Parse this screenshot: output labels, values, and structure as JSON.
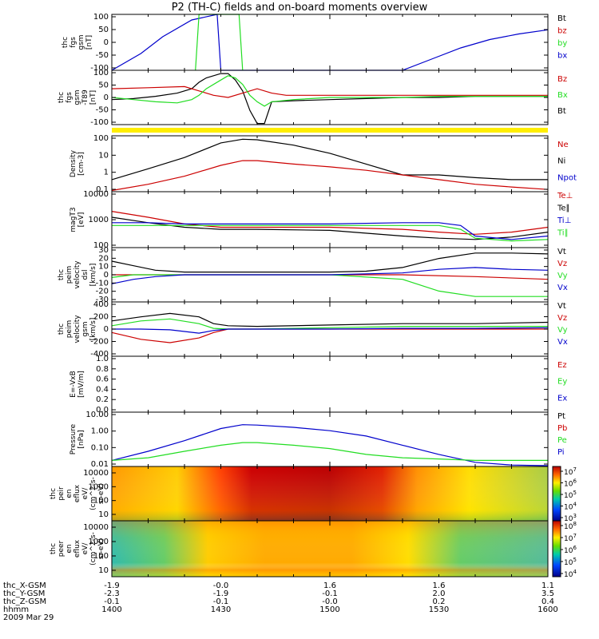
{
  "title": "P2 (TH-C) fields and on-board moments overview",
  "colors": {
    "black": "#000000",
    "red": "#cc0000",
    "green": "#22dd22",
    "blue": "#0000cc",
    "yellow": "#ffee00"
  },
  "chart_data": [
    {
      "type": "line",
      "panel": "fgs",
      "ylabel": [
        "thc",
        "fgs",
        "gsm",
        "[nT]"
      ],
      "yticks": [
        "100",
        "50",
        "0",
        "-50",
        "-100"
      ],
      "ylim": [
        -100,
        100
      ],
      "legend": [
        {
          "label": "Bt",
          "color": "black"
        },
        {
          "label": "bz",
          "color": "red"
        },
        {
          "label": "by",
          "color": "green"
        },
        {
          "label": "bx",
          "color": "blue"
        }
      ],
      "series": [
        {
          "name": "bx",
          "color": "blue",
          "x": [
            0,
            4,
            7,
            11,
            14.5,
            15,
            40,
            44,
            48,
            52,
            56,
            60
          ],
          "y": [
            -100,
            -40,
            20,
            80,
            100,
            -100,
            -100,
            -60,
            -20,
            10,
            30,
            45
          ]
        },
        {
          "name": "by",
          "color": "green",
          "x": [
            11.5,
            12,
            14,
            17.5,
            18
          ],
          "y": [
            -100,
            100,
            100,
            100,
            -100
          ]
        }
      ]
    },
    {
      "type": "line",
      "panel": "fgs_zoom",
      "ylabel": [
        "thc",
        "fgs",
        "gsm",
        "-T89",
        "[nT]"
      ],
      "yticks": [
        "100",
        "50",
        "0",
        "-50",
        "-100"
      ],
      "ylim": [
        -125,
        125
      ],
      "legend": [
        {
          "label": "Bz",
          "color": "red"
        },
        {
          "label": "Bx",
          "color": "green"
        },
        {
          "label": "Bt",
          "color": "black"
        }
      ],
      "series": [
        {
          "name": "Bt",
          "color": "black",
          "x": [
            0,
            3,
            6,
            9,
            11,
            12,
            13,
            15,
            16,
            17,
            18,
            19,
            20,
            21,
            22,
            25,
            30,
            35,
            40,
            45,
            50,
            55,
            60
          ],
          "y": [
            -10,
            -5,
            5,
            20,
            40,
            70,
            90,
            110,
            110,
            80,
            30,
            -60,
            -120,
            -120,
            -20,
            -15,
            -10,
            -5,
            0,
            0,
            5,
            5,
            5
          ]
        },
        {
          "name": "Bz",
          "color": "red",
          "x": [
            0,
            5,
            10,
            12,
            14,
            16,
            18,
            20,
            22,
            24,
            30,
            40,
            50,
            60
          ],
          "y": [
            40,
            45,
            50,
            30,
            10,
            0,
            20,
            40,
            20,
            10,
            10,
            10,
            10,
            10
          ]
        },
        {
          "name": "Bx",
          "color": "green",
          "x": [
            0,
            3,
            6,
            9,
            11,
            12,
            13,
            15,
            16,
            17,
            18,
            19,
            20,
            21,
            22,
            25,
            30,
            35,
            40,
            45,
            50,
            55,
            60
          ],
          "y": [
            0,
            -10,
            -20,
            -25,
            -10,
            10,
            40,
            80,
            100,
            90,
            60,
            10,
            -20,
            -40,
            -20,
            -10,
            0,
            0,
            0,
            5,
            5,
            5,
            5
          ]
        }
      ]
    },
    {
      "type": "line",
      "panel": "density",
      "ylabel": [
        "Density",
        "[cm-3]"
      ],
      "scale": "log",
      "yticks": [
        "100",
        "10",
        "1",
        "0.1"
      ],
      "ylim": [
        0.05,
        200
      ],
      "legend": [
        {
          "label": "Ne",
          "color": "red"
        },
        {
          "label": "Ni",
          "color": "black"
        },
        {
          "label": "Npot",
          "color": "blue"
        }
      ],
      "series": [
        {
          "name": "Ni",
          "color": "black",
          "x": [
            0,
            5,
            10,
            15,
            18,
            20,
            25,
            30,
            35,
            40,
            45,
            50,
            55,
            60
          ],
          "y": [
            0.3,
            1.5,
            8,
            70,
            120,
            110,
            50,
            15,
            3,
            0.6,
            0.6,
            0.4,
            0.3,
            0.3
          ]
        },
        {
          "name": "Ne",
          "color": "red",
          "x": [
            0,
            5,
            10,
            15,
            18,
            20,
            25,
            30,
            35,
            40,
            45,
            50,
            55,
            60
          ],
          "y": [
            0.06,
            0.15,
            0.5,
            2.5,
            5,
            5,
            3,
            2,
            1.2,
            0.6,
            0.3,
            0.15,
            0.1,
            0.07
          ]
        }
      ]
    },
    {
      "type": "line",
      "panel": "temperature",
      "ylabel": [
        "magT3",
        "[eV]"
      ],
      "scale": "log",
      "yticks": [
        "10000",
        "1000",
        "100"
      ],
      "ylim": [
        30,
        10000
      ],
      "legend": [
        {
          "label": "Te⊥",
          "color": "red"
        },
        {
          "label": "Te∥",
          "color": "black"
        },
        {
          "label": "Ti⊥",
          "color": "blue"
        },
        {
          "label": "Ti∥",
          "color": "green"
        }
      ],
      "series": [
        {
          "name": "Te⊥",
          "color": "red",
          "x": [
            0,
            5,
            10,
            15,
            20,
            30,
            40,
            45,
            50,
            55,
            60
          ],
          "y": [
            1300,
            700,
            350,
            250,
            250,
            250,
            200,
            150,
            120,
            150,
            250
          ]
        },
        {
          "name": "Te∥",
          "color": "black",
          "x": [
            0,
            5,
            10,
            15,
            20,
            30,
            40,
            45,
            50,
            55,
            60
          ],
          "y": [
            700,
            400,
            250,
            200,
            200,
            180,
            100,
            80,
            70,
            90,
            150
          ]
        },
        {
          "name": "Ti⊥",
          "color": "blue",
          "x": [
            0,
            5,
            10,
            15,
            20,
            30,
            40,
            45,
            48,
            50,
            55,
            60
          ],
          "y": [
            400,
            400,
            350,
            350,
            350,
            350,
            400,
            400,
            300,
            100,
            70,
            100
          ]
        },
        {
          "name": "Ti∥",
          "color": "green",
          "x": [
            0,
            5,
            10,
            15,
            20,
            30,
            40,
            45,
            48,
            50,
            55,
            60
          ],
          "y": [
            300,
            300,
            300,
            300,
            300,
            300,
            300,
            300,
            200,
            80,
            60,
            70
          ]
        }
      ]
    },
    {
      "type": "line",
      "panel": "velocity_dsl",
      "ylabel": [
        "thc",
        "peim",
        "velocity",
        "dsl",
        "[km/s]"
      ],
      "yticks": [
        "30",
        "20",
        "10",
        "0",
        "-10",
        "-20",
        "-30"
      ],
      "ylim": [
        -30,
        30
      ],
      "legend": [
        {
          "label": "Vt",
          "color": "black"
        },
        {
          "label": "Vz",
          "color": "red"
        },
        {
          "label": "Vy",
          "color": "green"
        },
        {
          "label": "Vx",
          "color": "blue"
        }
      ],
      "series": [
        {
          "name": "Vt",
          "color": "black",
          "x": [
            0,
            3,
            6,
            10,
            15,
            20,
            25,
            30,
            35,
            40,
            45,
            50,
            55,
            60
          ],
          "y": [
            15,
            10,
            5,
            3,
            3,
            3,
            3,
            3,
            4,
            8,
            18,
            24,
            24,
            23
          ]
        },
        {
          "name": "Vz",
          "color": "red",
          "x": [
            0,
            5,
            10,
            20,
            30,
            40,
            50,
            60
          ],
          "y": [
            0,
            0,
            0,
            0,
            0,
            0,
            -2,
            -5
          ]
        },
        {
          "name": "Vy",
          "color": "green",
          "x": [
            0,
            3,
            6,
            10,
            20,
            30,
            40,
            45,
            50,
            55,
            60
          ],
          "y": [
            -3,
            0,
            0,
            0,
            0,
            0,
            -5,
            -18,
            -24,
            -24,
            -24
          ]
        },
        {
          "name": "Vx",
          "color": "blue",
          "x": [
            0,
            3,
            6,
            10,
            20,
            30,
            40,
            45,
            50,
            55,
            60
          ],
          "y": [
            -10,
            -5,
            -2,
            0,
            0,
            0,
            2,
            6,
            8,
            6,
            5
          ]
        }
      ]
    },
    {
      "type": "line",
      "panel": "velocity_gsm",
      "ylabel": [
        "thc",
        "peim",
        "velocity",
        "gsm",
        "[km/s]"
      ],
      "yticks": [
        "400",
        "200",
        "0",
        "-200",
        "-400"
      ],
      "ylim": [
        -400,
        400
      ],
      "legend": [
        {
          "label": "Vt",
          "color": "black"
        },
        {
          "label": "Vz",
          "color": "red"
        },
        {
          "label": "Vy",
          "color": "green"
        },
        {
          "label": "Vx",
          "color": "blue"
        }
      ],
      "series": [
        {
          "name": "Vt",
          "color": "black",
          "x": [
            0,
            4,
            8,
            12,
            14,
            16,
            20,
            30,
            40,
            50,
            60
          ],
          "y": [
            120,
            180,
            230,
            180,
            80,
            50,
            40,
            60,
            80,
            80,
            100
          ]
        },
        {
          "name": "Vz",
          "color": "red",
          "x": [
            0,
            4,
            8,
            12,
            14,
            16,
            20,
            30,
            40,
            50,
            60
          ],
          "y": [
            -50,
            -150,
            -200,
            -130,
            -50,
            0,
            0,
            0,
            0,
            0,
            0
          ]
        },
        {
          "name": "Vy",
          "color": "green",
          "x": [
            0,
            4,
            8,
            12,
            14,
            16,
            20,
            30,
            40,
            50,
            60
          ],
          "y": [
            50,
            120,
            150,
            80,
            10,
            0,
            0,
            20,
            40,
            40,
            40
          ]
        },
        {
          "name": "Vx",
          "color": "blue",
          "x": [
            0,
            4,
            8,
            12,
            14,
            16,
            20,
            30,
            40,
            50,
            60
          ],
          "y": [
            0,
            0,
            -10,
            -60,
            -20,
            0,
            0,
            0,
            10,
            10,
            20
          ]
        }
      ]
    },
    {
      "type": "line",
      "panel": "efield",
      "ylabel": [
        "E=-VxB",
        "[mV/m]"
      ],
      "yticks": [
        "1.0",
        "0.8",
        "0.6",
        "0.4",
        "0.2",
        "0.0"
      ],
      "ylim": [
        0,
        1
      ],
      "legend": [
        {
          "label": "Ez",
          "color": "red"
        },
        {
          "label": "Ey",
          "color": "green"
        },
        {
          "label": "Ex",
          "color": "blue"
        }
      ],
      "series": []
    },
    {
      "type": "line",
      "panel": "pressure",
      "ylabel": [
        "Pressure",
        "[nPa]"
      ],
      "scale": "log",
      "yticks": [
        "10.00",
        "1.00",
        "0.10",
        "0.01"
      ],
      "ylim": [
        0.008,
        30
      ],
      "legend": [
        {
          "label": "Pt",
          "color": "black"
        },
        {
          "label": "Pb",
          "color": "red"
        },
        {
          "label": "Pe",
          "color": "green"
        },
        {
          "label": "Pi",
          "color": "blue"
        }
      ],
      "series": [
        {
          "name": "Pi",
          "color": "blue",
          "x": [
            0,
            5,
            10,
            15,
            18,
            20,
            25,
            30,
            35,
            40,
            45,
            50,
            55,
            60
          ],
          "y": [
            0.02,
            0.08,
            0.4,
            2.5,
            4.5,
            4.2,
            3,
            1.8,
            0.8,
            0.2,
            0.05,
            0.015,
            0.01,
            0.009
          ]
        },
        {
          "name": "Pe",
          "color": "green",
          "x": [
            0,
            5,
            10,
            15,
            18,
            20,
            25,
            30,
            35,
            40,
            45,
            50,
            55,
            60
          ],
          "y": [
            0.02,
            0.03,
            0.08,
            0.2,
            0.3,
            0.3,
            0.2,
            0.12,
            0.05,
            0.03,
            0.025,
            0.02,
            0.02,
            0.02
          ]
        }
      ]
    },
    {
      "type": "heatmap",
      "panel": "ion_spectrogram",
      "ylabel": [
        "thc",
        "peir",
        "en",
        "eflux",
        "eV/",
        "(cm^2-s-",
        "sr-eV)"
      ],
      "yticks": [
        "10000",
        "1000",
        "100",
        "10"
      ],
      "colorbar": {
        "ticks": [
          "10^7",
          "10^6",
          "10^5",
          "10^4",
          "10^3"
        ]
      }
    },
    {
      "type": "heatmap",
      "panel": "electron_spectrogram",
      "ylabel": [
        "thc",
        "peer",
        "en",
        "eflux",
        "eV/",
        "(cm^2-s-",
        "sr-eV)"
      ],
      "yticks": [
        "10000",
        "1000",
        "100",
        "10"
      ],
      "colorbar": {
        "ticks": [
          "10^8",
          "10^7",
          "10^6",
          "10^5",
          "10^4"
        ]
      }
    }
  ],
  "ephemeris": {
    "rows": [
      {
        "label": "thc_X-GSM",
        "values": [
          "-1.9",
          "-0.0",
          "1.6",
          "1.6",
          "1.1"
        ]
      },
      {
        "label": "thc_Y-GSM",
        "values": [
          "-2.3",
          "-1.9",
          "-0.1",
          "2.0",
          "3.5"
        ]
      },
      {
        "label": "thc_Z-GSM",
        "values": [
          "-0.1",
          "-0.1",
          "-0.0",
          "0.2",
          "0.4"
        ]
      },
      {
        "label": "hhmm",
        "values": [
          "1400",
          "1430",
          "1500",
          "1530",
          "1600"
        ]
      }
    ],
    "date": "2009 Mar 29"
  }
}
